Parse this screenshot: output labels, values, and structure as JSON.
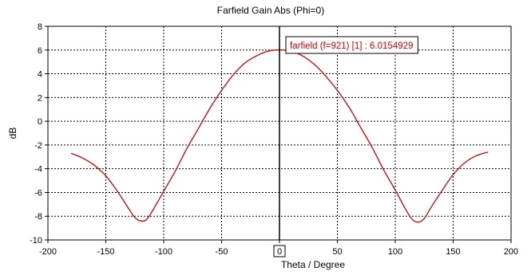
{
  "chart_data": {
    "type": "line",
    "title": "Farfield Gain Abs (Phi=0)",
    "xlabel": "Theta / Degree",
    "ylabel": "dB",
    "xlim": [
      -200,
      200
    ],
    "ylim": [
      -10,
      8
    ],
    "xticks": [
      -200,
      -150,
      -100,
      -50,
      0,
      50,
      100,
      150,
      200
    ],
    "yticks": [
      -10,
      -8,
      -6,
      -4,
      -2,
      0,
      2,
      4,
      6,
      8
    ],
    "grid": true,
    "series": [
      {
        "color": "#cc0000",
        "x": [
          -180,
          -170,
          -160,
          -150,
          -140,
          -130,
          -125,
          -120,
          -115,
          -110,
          -100,
          -90,
          -80,
          -70,
          -60,
          -50,
          -40,
          -30,
          -20,
          -10,
          0,
          10,
          20,
          30,
          40,
          50,
          60,
          70,
          80,
          90,
          100,
          110,
          115,
          120,
          125,
          130,
          140,
          150,
          160,
          170,
          180
        ],
        "y": [
          -2.7,
          -3.1,
          -3.7,
          -4.6,
          -5.9,
          -7.4,
          -8.1,
          -8.4,
          -8.3,
          -7.6,
          -5.9,
          -4.2,
          -2.3,
          -0.6,
          1.1,
          2.6,
          3.9,
          4.9,
          5.5,
          5.9,
          6.02,
          5.9,
          5.5,
          4.8,
          3.8,
          2.6,
          1.2,
          -0.5,
          -2.2,
          -4.1,
          -5.8,
          -7.6,
          -8.3,
          -8.5,
          -8.2,
          -7.4,
          -5.9,
          -4.5,
          -3.5,
          -2.9,
          -2.6
        ]
      }
    ],
    "marker": {
      "x": 0,
      "label": "farfield (f=921) [1] : 6.0154929",
      "cursor_tag": "0"
    }
  }
}
